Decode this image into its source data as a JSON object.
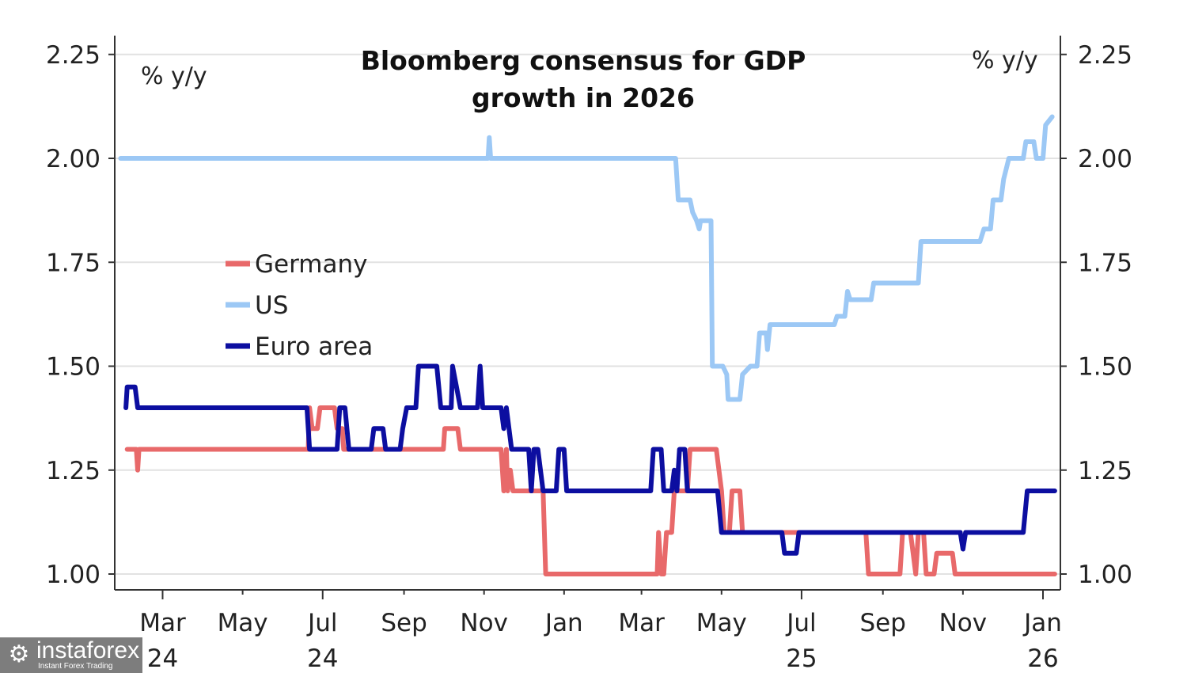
{
  "chart_data": {
    "type": "line",
    "title": "Bloomberg consensus for GDP growth in 2026",
    "title_lines": [
      "Bloomberg consensus for GDP",
      "growth in 2026"
    ],
    "ylabel_left": "% y/y",
    "ylabel_right": "% y/y",
    "ylim": [
      0.96,
      2.29
    ],
    "yticks": [
      1.0,
      1.25,
      1.5,
      1.75,
      2.0,
      2.25
    ],
    "ytick_labels": [
      "1.00",
      "1.25",
      "1.50",
      "1.75",
      "2.00",
      "2.25"
    ],
    "x_unit": "days since 2024-01-01",
    "xlim": [
      25,
      750
    ],
    "xticks": [
      {
        "day": 60,
        "label": "Mar",
        "year": "24"
      },
      {
        "day": 121,
        "label": "May",
        "year": ""
      },
      {
        "day": 182,
        "label": "Jul",
        "year": "24"
      },
      {
        "day": 244,
        "label": "Sep",
        "year": ""
      },
      {
        "day": 305,
        "label": "Nov",
        "year": ""
      },
      {
        "day": 366,
        "label": "Jan",
        "year": ""
      },
      {
        "day": 425,
        "label": "Mar",
        "year": ""
      },
      {
        "day": 486,
        "label": "May",
        "year": ""
      },
      {
        "day": 547,
        "label": "Jul",
        "year": "25"
      },
      {
        "day": 609,
        "label": "Sep",
        "year": ""
      },
      {
        "day": 670,
        "label": "Nov",
        "year": ""
      },
      {
        "day": 731,
        "label": "Jan",
        "year": "26"
      }
    ],
    "grid": "horizontal",
    "legend_position": "center-left",
    "series": [
      {
        "name": "Germany",
        "color": "#e8696a",
        "points": [
          [
            33,
            1.3
          ],
          [
            40,
            1.3
          ],
          [
            41,
            1.25
          ],
          [
            42,
            1.3
          ],
          [
            171,
            1.3
          ],
          [
            172,
            1.4
          ],
          [
            174,
            1.35
          ],
          [
            178,
            1.35
          ],
          [
            180,
            1.4
          ],
          [
            191,
            1.4
          ],
          [
            193,
            1.35
          ],
          [
            197,
            1.35
          ],
          [
            198,
            1.3
          ],
          [
            274,
            1.3
          ],
          [
            275,
            1.35
          ],
          [
            285,
            1.35
          ],
          [
            287,
            1.3
          ],
          [
            318,
            1.3
          ],
          [
            320,
            1.2
          ],
          [
            322,
            1.3
          ],
          [
            323,
            1.2
          ],
          [
            325,
            1.25
          ],
          [
            327,
            1.2
          ],
          [
            350,
            1.2
          ],
          [
            352,
            1.0
          ],
          [
            437,
            1.0
          ],
          [
            438,
            1.1
          ],
          [
            440,
            1.0
          ],
          [
            442,
            1.0
          ],
          [
            444,
            1.1
          ],
          [
            448,
            1.1
          ],
          [
            450,
            1.2
          ],
          [
            460,
            1.2
          ],
          [
            462,
            1.3
          ],
          [
            482,
            1.3
          ],
          [
            484,
            1.25
          ],
          [
            486,
            1.2
          ],
          [
            488,
            1.1
          ],
          [
            492,
            1.1
          ],
          [
            494,
            1.2
          ],
          [
            500,
            1.2
          ],
          [
            502,
            1.1
          ],
          [
            596,
            1.1
          ],
          [
            598,
            1.0
          ],
          [
            622,
            1.0
          ],
          [
            624,
            1.1
          ],
          [
            630,
            1.1
          ],
          [
            632,
            1.05
          ],
          [
            634,
            1.0
          ],
          [
            636,
            1.1
          ],
          [
            640,
            1.1
          ],
          [
            642,
            1.0
          ],
          [
            648,
            1.0
          ],
          [
            650,
            1.05
          ],
          [
            662,
            1.05
          ],
          [
            664,
            1.0
          ],
          [
            740,
            1.0
          ]
        ]
      },
      {
        "name": "US",
        "color": "#9cc8f5",
        "points": [
          [
            28,
            2.0
          ],
          [
            308,
            2.0
          ],
          [
            309,
            2.05
          ],
          [
            310,
            2.0
          ],
          [
            451,
            2.0
          ],
          [
            453,
            1.9
          ],
          [
            462,
            1.9
          ],
          [
            464,
            1.87
          ],
          [
            467,
            1.85
          ],
          [
            469,
            1.83
          ],
          [
            470,
            1.85
          ],
          [
            478,
            1.85
          ],
          [
            479,
            1.5
          ],
          [
            487,
            1.5
          ],
          [
            490,
            1.48
          ],
          [
            491,
            1.42
          ],
          [
            500,
            1.42
          ],
          [
            502,
            1.48
          ],
          [
            508,
            1.5
          ],
          [
            513,
            1.5
          ],
          [
            515,
            1.58
          ],
          [
            520,
            1.58
          ],
          [
            521,
            1.54
          ],
          [
            523,
            1.6
          ],
          [
            572,
            1.6
          ],
          [
            574,
            1.62
          ],
          [
            580,
            1.62
          ],
          [
            582,
            1.68
          ],
          [
            584,
            1.66
          ],
          [
            600,
            1.66
          ],
          [
            602,
            1.7
          ],
          [
            636,
            1.7
          ],
          [
            638,
            1.8
          ],
          [
            683,
            1.8
          ],
          [
            686,
            1.83
          ],
          [
            691,
            1.83
          ],
          [
            693,
            1.9
          ],
          [
            699,
            1.9
          ],
          [
            701,
            1.95
          ],
          [
            705,
            2.0
          ],
          [
            716,
            2.0
          ],
          [
            718,
            2.04
          ],
          [
            724,
            2.04
          ],
          [
            726,
            2.0
          ],
          [
            731,
            2.0
          ],
          [
            733,
            2.08
          ],
          [
            738,
            2.1
          ]
        ]
      },
      {
        "name": "Euro area",
        "color": "#0c0ea0",
        "points": [
          [
            32,
            1.4
          ],
          [
            33,
            1.45
          ],
          [
            39,
            1.45
          ],
          [
            41,
            1.4
          ],
          [
            170,
            1.4
          ],
          [
            172,
            1.3
          ],
          [
            193,
            1.3
          ],
          [
            195,
            1.4
          ],
          [
            199,
            1.4
          ],
          [
            202,
            1.3
          ],
          [
            219,
            1.3
          ],
          [
            221,
            1.35
          ],
          [
            228,
            1.35
          ],
          [
            230,
            1.3
          ],
          [
            241,
            1.3
          ],
          [
            243,
            1.35
          ],
          [
            246,
            1.4
          ],
          [
            253,
            1.4
          ],
          [
            255,
            1.5
          ],
          [
            269,
            1.5
          ],
          [
            272,
            1.4
          ],
          [
            280,
            1.4
          ],
          [
            281,
            1.5
          ],
          [
            284,
            1.45
          ],
          [
            287,
            1.4
          ],
          [
            300,
            1.4
          ],
          [
            302,
            1.5
          ],
          [
            304,
            1.4
          ],
          [
            318,
            1.4
          ],
          [
            320,
            1.35
          ],
          [
            322,
            1.4
          ],
          [
            326,
            1.3
          ],
          [
            339,
            1.3
          ],
          [
            341,
            1.2
          ],
          [
            343,
            1.3
          ],
          [
            346,
            1.3
          ],
          [
            348,
            1.25
          ],
          [
            350,
            1.2
          ],
          [
            360,
            1.2
          ],
          [
            362,
            1.3
          ],
          [
            366,
            1.3
          ],
          [
            368,
            1.2
          ],
          [
            432,
            1.2
          ],
          [
            434,
            1.3
          ],
          [
            440,
            1.3
          ],
          [
            442,
            1.2
          ],
          [
            448,
            1.2
          ],
          [
            450,
            1.25
          ],
          [
            452,
            1.2
          ],
          [
            454,
            1.3
          ],
          [
            458,
            1.3
          ],
          [
            460,
            1.2
          ],
          [
            483,
            1.2
          ],
          [
            486,
            1.1
          ],
          [
            532,
            1.1
          ],
          [
            534,
            1.05
          ],
          [
            543,
            1.05
          ],
          [
            545,
            1.1
          ],
          [
            668,
            1.1
          ],
          [
            670,
            1.06
          ],
          [
            672,
            1.1
          ],
          [
            716,
            1.1
          ],
          [
            719,
            1.2
          ],
          [
            740,
            1.2
          ]
        ]
      }
    ]
  },
  "watermark": {
    "brand": "instaforex",
    "tagline": "Instant Forex Trading"
  }
}
